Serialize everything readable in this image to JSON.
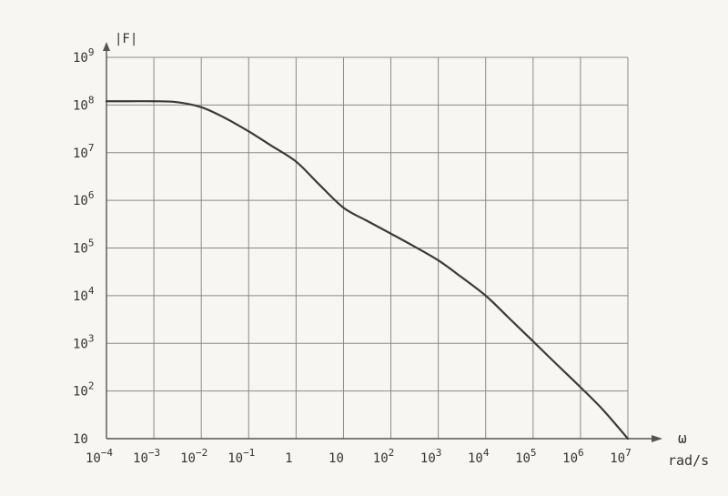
{
  "chart_data": {
    "type": "line",
    "ylabel": "|F|",
    "xlabel_symbol": "ω",
    "xlabel_unit": "rad/s",
    "x_scale": "log",
    "y_scale": "log",
    "xlim": [
      0.0001,
      10000000
    ],
    "ylim": [
      10,
      1000000000
    ],
    "grid": true,
    "x_ticks": [
      {
        "value": 0.0001,
        "base": "10",
        "exp": "−4"
      },
      {
        "value": 0.001,
        "base": "10",
        "exp": "−3"
      },
      {
        "value": 0.01,
        "base": "10",
        "exp": "−2"
      },
      {
        "value": 0.1,
        "base": "10",
        "exp": "−1"
      },
      {
        "value": 1,
        "base": "1",
        "exp": ""
      },
      {
        "value": 10,
        "base": "10",
        "exp": ""
      },
      {
        "value": 100,
        "base": "10",
        "exp": "2"
      },
      {
        "value": 1000,
        "base": "10",
        "exp": "3"
      },
      {
        "value": 10000,
        "base": "10",
        "exp": "4"
      },
      {
        "value": 100000,
        "base": "10",
        "exp": "5"
      },
      {
        "value": 1000000,
        "base": "10",
        "exp": "6"
      },
      {
        "value": 10000000,
        "base": "10",
        "exp": "7"
      }
    ],
    "y_ticks": [
      {
        "value": 10,
        "base": "10",
        "exp": ""
      },
      {
        "value": 100,
        "base": "10",
        "exp": "2"
      },
      {
        "value": 1000,
        "base": "10",
        "exp": "3"
      },
      {
        "value": 10000,
        "base": "10",
        "exp": "4"
      },
      {
        "value": 100000,
        "base": "10",
        "exp": "5"
      },
      {
        "value": 1000000,
        "base": "10",
        "exp": "6"
      },
      {
        "value": 10000000,
        "base": "10",
        "exp": "7"
      },
      {
        "value": 100000000,
        "base": "10",
        "exp": "8"
      },
      {
        "value": 1000000000,
        "base": "10",
        "exp": "9"
      }
    ],
    "series": [
      {
        "x": [
          0.0001,
          0.0003,
          0.001,
          0.003,
          0.01,
          0.03,
          0.1,
          0.3,
          1,
          3,
          10,
          30,
          100,
          300,
          1000,
          3000,
          10000,
          30000,
          100000,
          300000,
          1000000,
          3000000,
          10000000
        ],
        "y": [
          120000000,
          120000000,
          120000000,
          115000000,
          90000000,
          55000000,
          28000000,
          14000000,
          6500000,
          2200000,
          700000,
          380000,
          200000,
          110000,
          55000,
          25000,
          10000,
          3500,
          1100,
          380,
          120,
          40,
          10
        ]
      }
    ]
  }
}
